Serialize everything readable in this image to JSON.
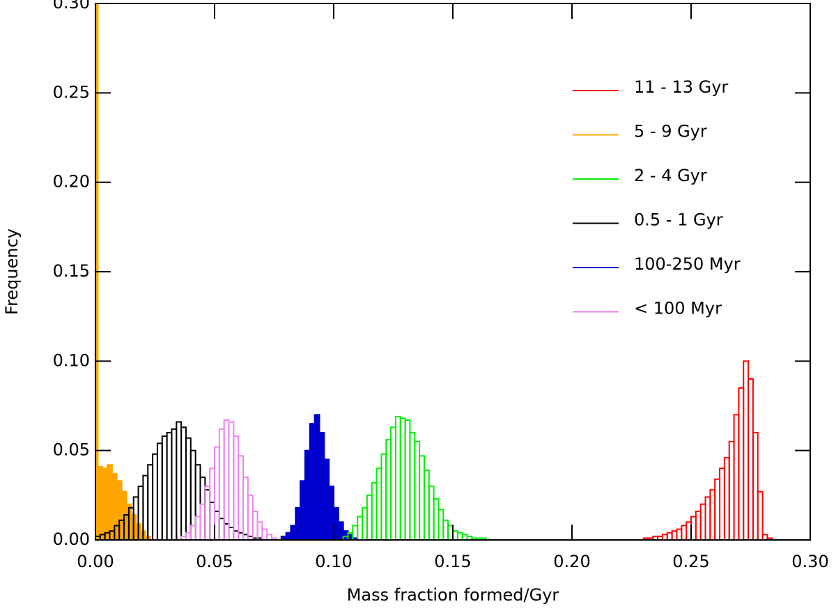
{
  "chart_data": {
    "type": "histogram",
    "xlabel": "Mass fraction formed/Gyr",
    "ylabel": "Frequency",
    "xlim": [
      0,
      0.3
    ],
    "ylim": [
      0,
      0.3
    ],
    "xticks": [
      {
        "value": 0,
        "label": "0.00"
      },
      {
        "value": 0.05,
        "label": "0.05"
      },
      {
        "value": 0.1,
        "label": "0.10"
      },
      {
        "value": 0.15,
        "label": "0.15"
      },
      {
        "value": 0.2,
        "label": "0.20"
      },
      {
        "value": 0.25,
        "label": "0.25"
      },
      {
        "value": 0.3,
        "label": "0.30"
      }
    ],
    "yticks": [
      {
        "value": 0,
        "label": "0.00"
      },
      {
        "value": 0.05,
        "label": "0.05"
      },
      {
        "value": 0.1,
        "label": "0.10"
      },
      {
        "value": 0.15,
        "label": "0.15"
      },
      {
        "value": 0.2,
        "label": "0.20"
      },
      {
        "value": 0.25,
        "label": "0.25"
      },
      {
        "value": 0.3,
        "label": "0.30"
      }
    ],
    "legend": "upper right",
    "series": [
      {
        "name": "11 - 13 Gyr",
        "color": "#ff0000",
        "filled": false,
        "bins": [
          0.23,
          0.232,
          0.234,
          0.236,
          0.238,
          0.24,
          0.242,
          0.244,
          0.246,
          0.248,
          0.25,
          0.252,
          0.254,
          0.256,
          0.258,
          0.26,
          0.262,
          0.264,
          0.266,
          0.268,
          0.27,
          0.272,
          0.274,
          0.276,
          0.278,
          0.28,
          0.282,
          0.284
        ],
        "values": [
          0.001,
          0.001,
          0.002,
          0.002,
          0.003,
          0.004,
          0.005,
          0.006,
          0.008,
          0.01,
          0.013,
          0.016,
          0.02,
          0.024,
          0.028,
          0.034,
          0.04,
          0.046,
          0.055,
          0.07,
          0.085,
          0.1,
          0.09,
          0.06,
          0.027,
          0.003,
          0.001
        ]
      },
      {
        "name": "5 - 9 Gyr",
        "color": "#ffa500",
        "filled": true,
        "bins": [
          0,
          0.001,
          0.003,
          0.005,
          0.007,
          0.009,
          0.011,
          0.013,
          0.015,
          0.017,
          0.019,
          0.021,
          0.023
        ],
        "values": [
          0.3,
          0.041,
          0.04,
          0.042,
          0.037,
          0.033,
          0.027,
          0.02,
          0.014,
          0.009,
          0.005,
          0.002
        ]
      },
      {
        "name": "2 - 4 Gyr",
        "color": "#00ee00",
        "filled": false,
        "bins": [
          0.104,
          0.106,
          0.108,
          0.11,
          0.112,
          0.114,
          0.116,
          0.118,
          0.12,
          0.122,
          0.124,
          0.126,
          0.128,
          0.13,
          0.132,
          0.134,
          0.136,
          0.138,
          0.14,
          0.142,
          0.144,
          0.146,
          0.148,
          0.15,
          0.152,
          0.154,
          0.156,
          0.158,
          0.16,
          0.162,
          0.164
        ],
        "values": [
          0.002,
          0.004,
          0.008,
          0.013,
          0.018,
          0.025,
          0.032,
          0.04,
          0.048,
          0.056,
          0.063,
          0.069,
          0.068,
          0.067,
          0.06,
          0.055,
          0.047,
          0.039,
          0.03,
          0.023,
          0.017,
          0.011,
          0.008,
          0.005,
          0.004,
          0.003,
          0.002,
          0.001,
          0.001,
          0.001
        ]
      },
      {
        "name": "0.5 - 1 Gyr",
        "color": "#000000",
        "filled": false,
        "bins": [
          0,
          0.002,
          0.004,
          0.006,
          0.008,
          0.01,
          0.012,
          0.014,
          0.016,
          0.018,
          0.02,
          0.022,
          0.024,
          0.026,
          0.028,
          0.03,
          0.032,
          0.034,
          0.036,
          0.038,
          0.04,
          0.042,
          0.044,
          0.046,
          0.048,
          0.05,
          0.052,
          0.054,
          0.056,
          0.058,
          0.06,
          0.062,
          0.064,
          0.066,
          0.068,
          0.07
        ],
        "values": [
          0.002,
          0.003,
          0.004,
          0.005,
          0.008,
          0.011,
          0.014,
          0.018,
          0.024,
          0.03,
          0.036,
          0.042,
          0.048,
          0.054,
          0.058,
          0.06,
          0.062,
          0.066,
          0.063,
          0.057,
          0.05,
          0.042,
          0.035,
          0.028,
          0.021,
          0.016,
          0.012,
          0.009,
          0.007,
          0.005,
          0.004,
          0.003,
          0.002,
          0.001,
          0.001
        ]
      },
      {
        "name": "100-250 Myr",
        "color": "#0000cc",
        "filled": true,
        "bins": [
          0.078,
          0.08,
          0.082,
          0.084,
          0.086,
          0.088,
          0.09,
          0.092,
          0.094,
          0.096,
          0.098,
          0.1,
          0.102,
          0.104,
          0.106,
          0.108,
          0.11
        ],
        "values": [
          0.002,
          0.004,
          0.008,
          0.018,
          0.033,
          0.05,
          0.065,
          0.07,
          0.06,
          0.045,
          0.03,
          0.018,
          0.01,
          0.005,
          0.003,
          0.001
        ]
      },
      {
        "name": "< 100 Myr",
        "color": "#ee82ee",
        "filled": false,
        "bins": [
          0.036,
          0.038,
          0.04,
          0.042,
          0.044,
          0.046,
          0.048,
          0.05,
          0.052,
          0.054,
          0.056,
          0.058,
          0.06,
          0.062,
          0.064,
          0.066,
          0.068,
          0.07,
          0.072,
          0.074,
          0.076
        ],
        "values": [
          0.002,
          0.004,
          0.008,
          0.013,
          0.02,
          0.03,
          0.04,
          0.052,
          0.062,
          0.067,
          0.066,
          0.058,
          0.047,
          0.035,
          0.025,
          0.016,
          0.01,
          0.006,
          0.003,
          0.001
        ]
      }
    ]
  }
}
